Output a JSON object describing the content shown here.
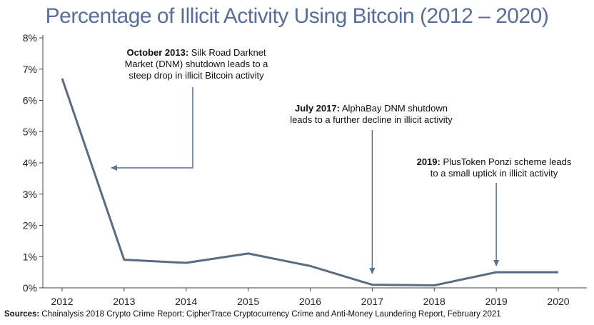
{
  "chart_data": {
    "type": "line",
    "title": "Percentage of Illicit Activity Using Bitcoin (2012 – 2020)",
    "xlabel": "",
    "ylabel": "",
    "categories": [
      "2012",
      "2013",
      "2014",
      "2015",
      "2016",
      "2017",
      "2018",
      "2019",
      "2020"
    ],
    "series": [
      {
        "values": [
          6.7,
          0.9,
          0.8,
          1.1,
          0.7,
          0.1,
          0.08,
          0.5,
          0.5
        ]
      }
    ],
    "ylim": [
      0,
      8
    ],
    "yticks": [
      "0%",
      "1%",
      "2%",
      "3%",
      "4%",
      "5%",
      "6%",
      "7%",
      "8%"
    ],
    "grid": false,
    "legend": "none",
    "colors": {
      "line": "#5b6b84",
      "arrow": "#5a6e98",
      "title": "#5a6e98"
    },
    "annotations": [
      {
        "bold": "October 2013:",
        "lines": [
          " Silk Road Darknet",
          "Market (DNM) shutdown leads to a",
          "steep drop in illicit Bitcoin activity"
        ]
      },
      {
        "bold": "July 2017:",
        "lines": [
          " AlphaBay DNM shutdown",
          "leads to a further decline in illicit activity"
        ]
      },
      {
        "bold": "2019:",
        "lines": [
          " PlusToken Ponzi scheme leads",
          "to a small uptick in illicit activity"
        ]
      }
    ]
  },
  "source": {
    "label": "Sources:",
    "text": " Chainalysis 2018 Crypto Crime Report; CipherTrace Cryptocurrency Crime and Anti-Money Laundering Report, February 2021"
  }
}
